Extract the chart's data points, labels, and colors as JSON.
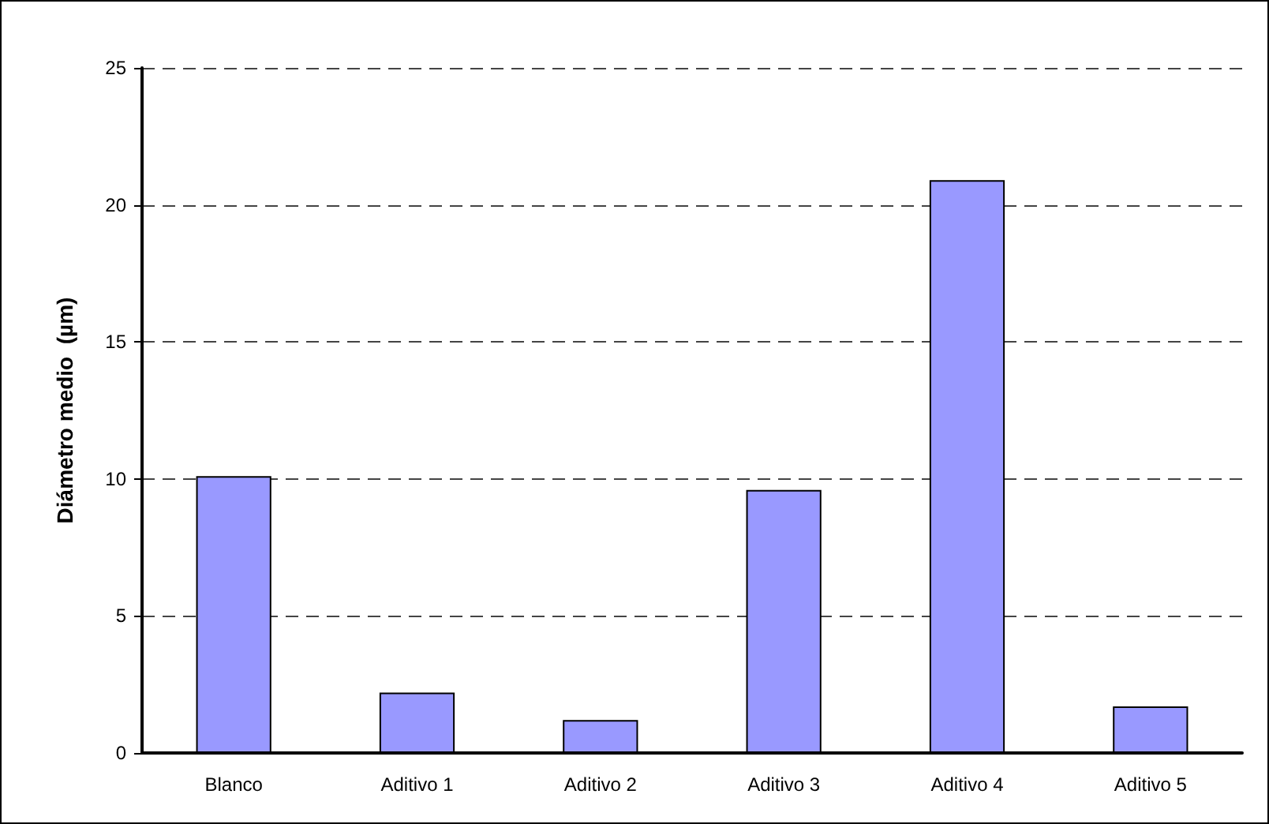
{
  "chart_data": {
    "type": "bar",
    "ylabel": "Diámetro medio  (µm)",
    "categories": [
      "Blanco",
      "Aditivo 1",
      "Aditivo 2",
      "Aditivo 3",
      "Aditivo 4",
      "Aditivo 5"
    ],
    "values": [
      10.1,
      2.2,
      1.2,
      9.6,
      20.9,
      1.7
    ],
    "color": "#9999ff",
    "ylim": [
      0,
      25
    ],
    "yticks": [
      0,
      5,
      10,
      15,
      20,
      25
    ],
    "grid": "y"
  }
}
